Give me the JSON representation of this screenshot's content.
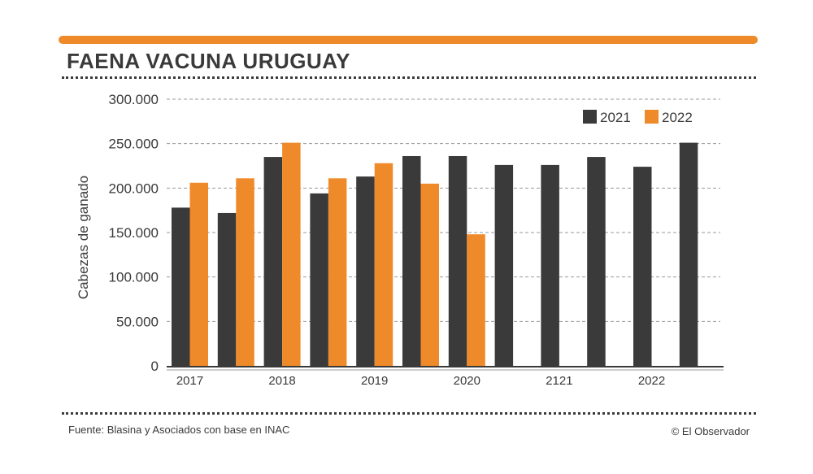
{
  "colors": {
    "accent_orange": "#ef8a2a",
    "bar_dark": "#3a3a3a",
    "text": "#3a3a3a",
    "grid": "#9a9a9a"
  },
  "header": {
    "title": "FAENA VACUNA URUGUAY"
  },
  "footer": {
    "source": "Fuente: Blasina y Asociados con base en INAC",
    "credit": "© El Observador"
  },
  "chart_data": {
    "type": "bar",
    "title": "FAENA VACUNA URUGUAY",
    "xlabel": "",
    "ylabel": "Cabezas de ganado",
    "ylim": [
      0,
      300000
    ],
    "yticks": [
      0,
      50000,
      100000,
      150000,
      200000,
      250000,
      300000
    ],
    "ytick_labels": [
      "0",
      "50.000",
      "100.000",
      "150.000",
      "200.000",
      "250.000",
      "300.000"
    ],
    "grid": true,
    "legend_position": "top-right",
    "groups": [
      {
        "values": [
          178000,
          206000
        ]
      },
      {
        "values": [
          172000,
          211000
        ]
      },
      {
        "values": [
          235000,
          251000
        ]
      },
      {
        "values": [
          194000,
          211000
        ]
      },
      {
        "values": [
          213000,
          228000
        ]
      },
      {
        "values": [
          236000,
          205000
        ]
      },
      {
        "values": [
          236000,
          148000
        ]
      },
      {
        "values": [
          226000,
          null
        ]
      },
      {
        "values": [
          226000,
          null
        ]
      },
      {
        "values": [
          235000,
          null
        ]
      },
      {
        "values": [
          224000,
          null
        ]
      },
      {
        "values": [
          251000,
          null
        ]
      }
    ],
    "series": [
      {
        "name": "2021",
        "color": "#3a3a3a"
      },
      {
        "name": "2022",
        "color": "#ef8a2a"
      }
    ],
    "x_tick_labels": [
      {
        "label": "2017",
        "group": 0
      },
      {
        "label": "2018",
        "group": 2
      },
      {
        "label": "2019",
        "group": 4
      },
      {
        "label": "2020",
        "group": 6
      },
      {
        "label": "2121",
        "group": 8
      },
      {
        "label": "2022",
        "group": 10
      }
    ]
  }
}
